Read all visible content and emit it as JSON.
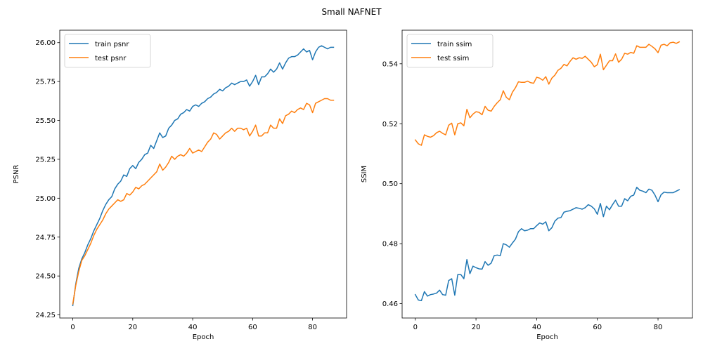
{
  "suptitle": "Small NAFNET",
  "colors": {
    "train": "#1f77b4",
    "test": "#ff7f0e",
    "axes": "#000000",
    "legend_border": "#cccccc"
  },
  "chart_data": [
    {
      "type": "line",
      "xlabel": "Epoch",
      "ylabel": "PSNR",
      "xlim": [
        -4.35,
        91.35
      ],
      "ylim": [
        24.23,
        26.08
      ],
      "xticks": [
        0,
        20,
        40,
        60,
        80
      ],
      "yticks": [
        24.25,
        24.5,
        24.75,
        25.0,
        25.25,
        25.5,
        25.75,
        26.0
      ],
      "ytick_labels": [
        "24.25",
        "24.50",
        "24.75",
        "25.00",
        "25.25",
        "25.50",
        "25.75",
        "26.00"
      ],
      "grid": false,
      "legend": "top-left",
      "x": [
        0,
        1,
        2,
        3,
        4,
        5,
        6,
        7,
        8,
        9,
        10,
        11,
        12,
        13,
        14,
        15,
        16,
        17,
        18,
        19,
        20,
        21,
        22,
        23,
        24,
        25,
        26,
        27,
        28,
        29,
        30,
        31,
        32,
        33,
        34,
        35,
        36,
        37,
        38,
        39,
        40,
        41,
        42,
        43,
        44,
        45,
        46,
        47,
        48,
        49,
        50,
        51,
        52,
        53,
        54,
        55,
        56,
        57,
        58,
        59,
        60,
        61,
        62,
        63,
        64,
        65,
        66,
        67,
        68,
        69,
        70,
        71,
        72,
        73,
        74,
        75,
        76,
        77,
        78,
        79,
        80,
        81,
        82,
        83,
        84,
        85,
        86,
        87
      ],
      "series": [
        {
          "name": "train psnr",
          "color": "train",
          "values": [
            24.31,
            24.45,
            24.55,
            24.61,
            24.65,
            24.7,
            24.74,
            24.79,
            24.83,
            24.87,
            24.92,
            24.96,
            24.99,
            25.01,
            25.06,
            25.09,
            25.11,
            25.15,
            25.14,
            25.19,
            25.21,
            25.19,
            25.23,
            25.25,
            25.28,
            25.29,
            25.34,
            25.32,
            25.37,
            25.42,
            25.39,
            25.4,
            25.45,
            25.47,
            25.5,
            25.51,
            25.54,
            25.55,
            25.57,
            25.56,
            25.59,
            25.6,
            25.59,
            25.61,
            25.62,
            25.64,
            25.65,
            25.67,
            25.68,
            25.7,
            25.69,
            25.71,
            25.72,
            25.74,
            25.73,
            25.74,
            25.75,
            25.75,
            25.76,
            25.72,
            25.75,
            25.79,
            25.73,
            25.78,
            25.78,
            25.8,
            25.83,
            25.81,
            25.83,
            25.87,
            25.83,
            25.87,
            25.9,
            25.91,
            25.91,
            25.92,
            25.94,
            25.96,
            25.94,
            25.95,
            25.89,
            25.94,
            25.97,
            25.98,
            25.97,
            25.96,
            25.97,
            25.97
          ]
        },
        {
          "name": "test psnr",
          "color": "test",
          "values": [
            24.32,
            24.44,
            24.53,
            24.6,
            24.63,
            24.67,
            24.71,
            24.76,
            24.8,
            24.83,
            24.86,
            24.9,
            24.93,
            24.95,
            24.97,
            24.99,
            24.98,
            24.99,
            25.03,
            25.02,
            25.04,
            25.07,
            25.06,
            25.08,
            25.09,
            25.11,
            25.13,
            25.15,
            25.17,
            25.22,
            25.18,
            25.2,
            25.23,
            25.27,
            25.25,
            25.27,
            25.28,
            25.27,
            25.29,
            25.32,
            25.29,
            25.3,
            25.31,
            25.3,
            25.33,
            25.36,
            25.38,
            25.42,
            25.41,
            25.38,
            25.4,
            25.42,
            25.43,
            25.45,
            25.43,
            25.45,
            25.45,
            25.44,
            25.45,
            25.4,
            25.43,
            25.47,
            25.4,
            25.4,
            25.42,
            25.42,
            25.47,
            25.45,
            25.45,
            25.51,
            25.48,
            25.53,
            25.54,
            25.56,
            25.55,
            25.57,
            25.58,
            25.57,
            25.61,
            25.6,
            25.55,
            25.61,
            25.62,
            25.63,
            25.64,
            25.64,
            25.63,
            25.63
          ]
        }
      ]
    },
    {
      "type": "line",
      "xlabel": "Epoch",
      "ylabel": "SSIM",
      "xlim": [
        -4.35,
        91.35
      ],
      "ylim": [
        0.4552,
        0.5512
      ],
      "xticks": [
        0,
        20,
        40,
        60,
        80
      ],
      "yticks": [
        0.46,
        0.48,
        0.5,
        0.52,
        0.54
      ],
      "ytick_labels": [
        "0.46",
        "0.48",
        "0.50",
        "0.52",
        "0.54"
      ],
      "grid": false,
      "legend": "top-left",
      "x": [
        0,
        1,
        2,
        3,
        4,
        5,
        6,
        7,
        8,
        9,
        10,
        11,
        12,
        13,
        14,
        15,
        16,
        17,
        18,
        19,
        20,
        21,
        22,
        23,
        24,
        25,
        26,
        27,
        28,
        29,
        30,
        31,
        32,
        33,
        34,
        35,
        36,
        37,
        38,
        39,
        40,
        41,
        42,
        43,
        44,
        45,
        46,
        47,
        48,
        49,
        50,
        51,
        52,
        53,
        54,
        55,
        56,
        57,
        58,
        59,
        60,
        61,
        62,
        63,
        64,
        65,
        66,
        67,
        68,
        69,
        70,
        71,
        72,
        73,
        74,
        75,
        76,
        77,
        78,
        79,
        80,
        81,
        82,
        83,
        84,
        85,
        86,
        87
      ],
      "series": [
        {
          "name": "train ssim",
          "color": "train",
          "values": [
            0.463,
            0.4612,
            0.461,
            0.464,
            0.4625,
            0.463,
            0.4632,
            0.4635,
            0.4645,
            0.463,
            0.4628,
            0.4677,
            0.4683,
            0.4628,
            0.4697,
            0.4697,
            0.4683,
            0.4747,
            0.47,
            0.4725,
            0.472,
            0.4716,
            0.4715,
            0.474,
            0.4728,
            0.4735,
            0.476,
            0.4762,
            0.476,
            0.48,
            0.4796,
            0.4788,
            0.4802,
            0.4815,
            0.484,
            0.485,
            0.4843,
            0.4845,
            0.485,
            0.485,
            0.486,
            0.4869,
            0.4865,
            0.4873,
            0.4843,
            0.4853,
            0.4875,
            0.4885,
            0.4887,
            0.4905,
            0.4908,
            0.491,
            0.4915,
            0.492,
            0.4918,
            0.4915,
            0.492,
            0.493,
            0.4925,
            0.4916,
            0.4898,
            0.4934,
            0.489,
            0.4925,
            0.4913,
            0.493,
            0.4945,
            0.4925,
            0.4925,
            0.495,
            0.4943,
            0.4958,
            0.4962,
            0.4988,
            0.4978,
            0.4975,
            0.497,
            0.4982,
            0.4978,
            0.4962,
            0.494,
            0.4963,
            0.4972,
            0.497,
            0.497,
            0.497,
            0.4975,
            0.498
          ]
        },
        {
          "name": "test ssim",
          "color": "test",
          "values": [
            0.5146,
            0.5133,
            0.5128,
            0.5163,
            0.5158,
            0.5155,
            0.516,
            0.517,
            0.5175,
            0.5168,
            0.5163,
            0.5195,
            0.5202,
            0.5163,
            0.52,
            0.5203,
            0.5193,
            0.5248,
            0.522,
            0.5232,
            0.524,
            0.5238,
            0.523,
            0.5258,
            0.5245,
            0.5242,
            0.5258,
            0.527,
            0.528,
            0.531,
            0.5288,
            0.528,
            0.5305,
            0.532,
            0.534,
            0.5338,
            0.5338,
            0.5342,
            0.5337,
            0.5335,
            0.5355,
            0.5352,
            0.5345,
            0.5357,
            0.5332,
            0.5352,
            0.5362,
            0.5378,
            0.5385,
            0.5398,
            0.5393,
            0.5408,
            0.542,
            0.5415,
            0.542,
            0.5418,
            0.5425,
            0.5415,
            0.5405,
            0.539,
            0.5397,
            0.5432,
            0.538,
            0.5395,
            0.541,
            0.541,
            0.5433,
            0.5405,
            0.5415,
            0.5435,
            0.5432,
            0.5438,
            0.5435,
            0.546,
            0.5455,
            0.5455,
            0.5455,
            0.5465,
            0.5458,
            0.545,
            0.5437,
            0.5462,
            0.5465,
            0.546,
            0.547,
            0.5472,
            0.5468,
            0.5473
          ]
        }
      ]
    }
  ]
}
